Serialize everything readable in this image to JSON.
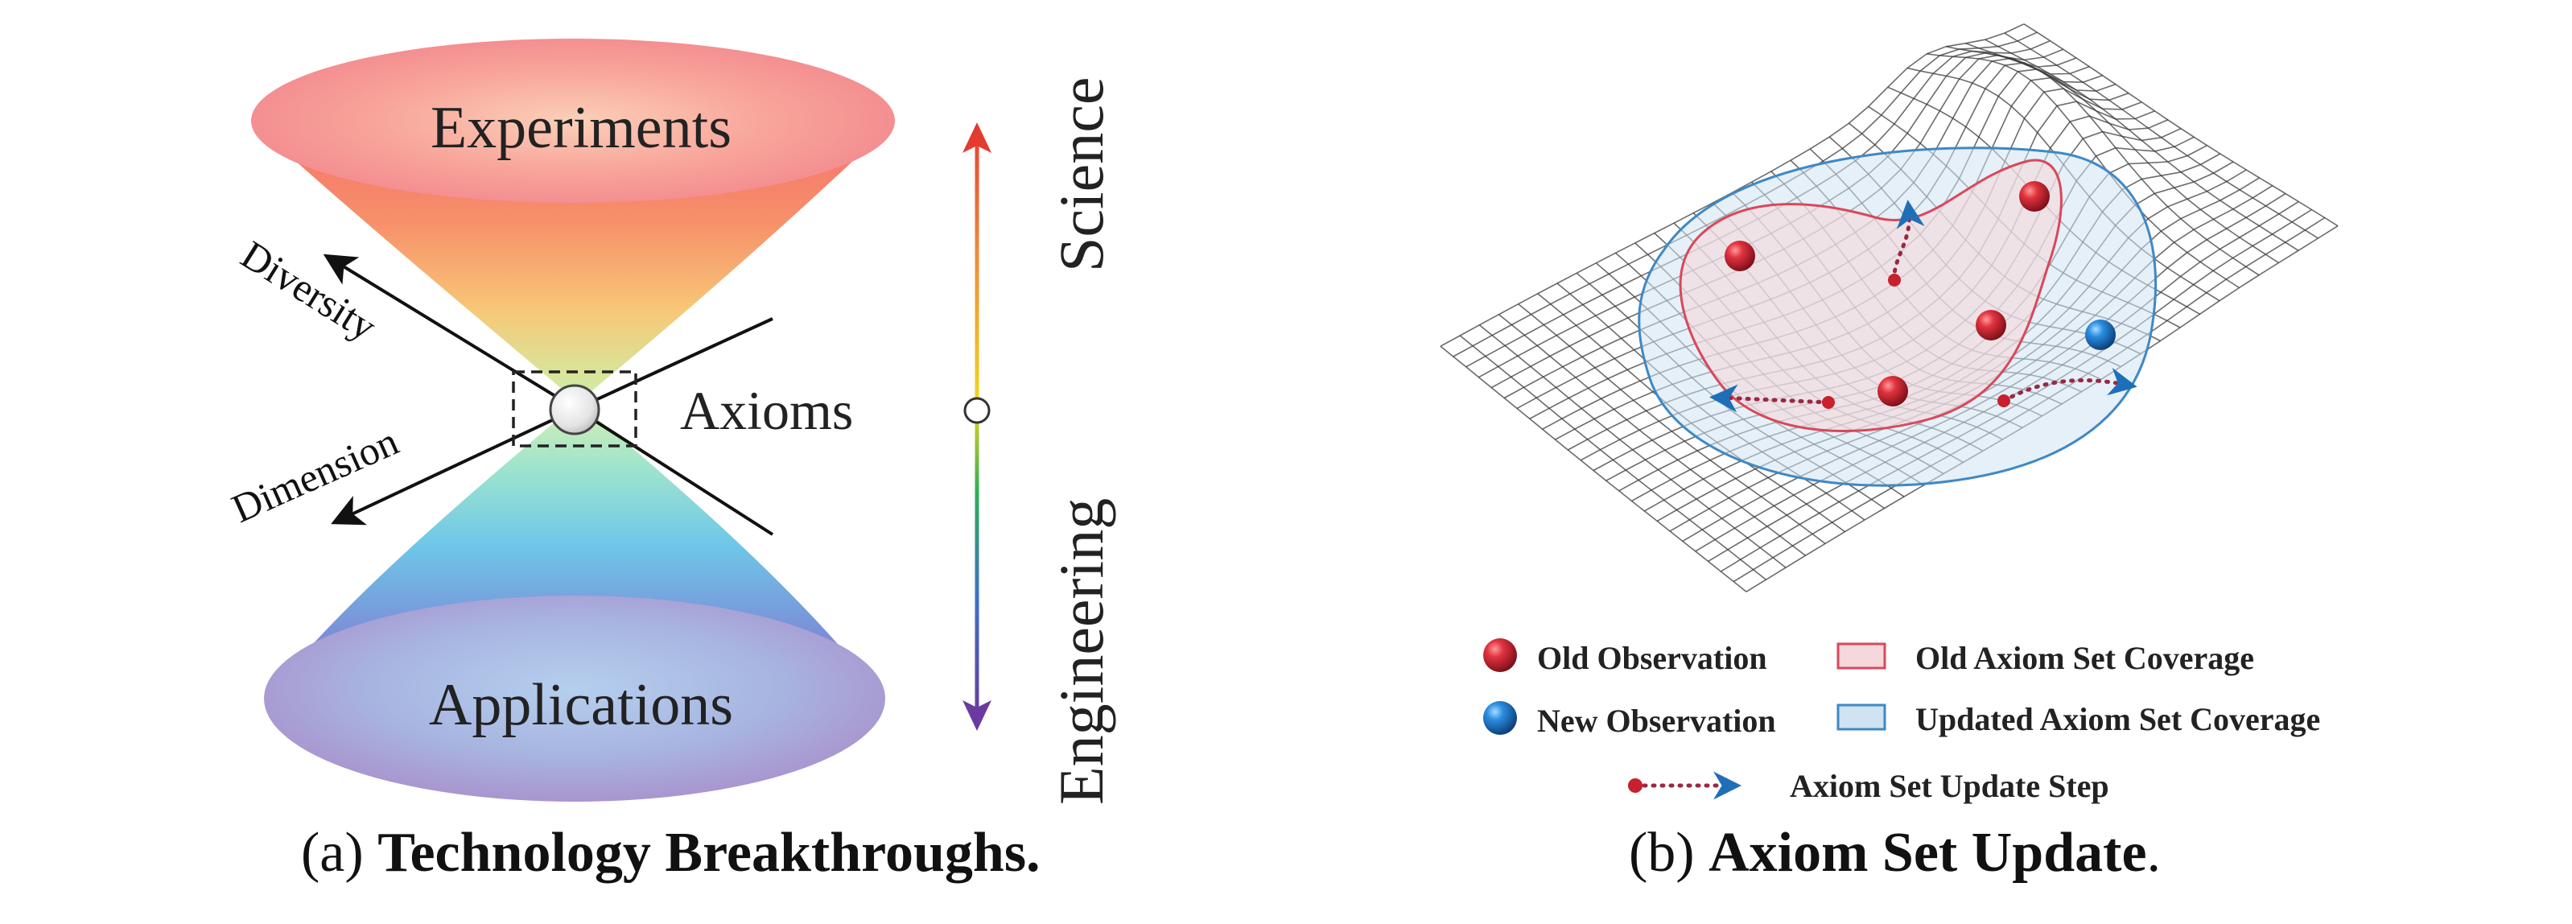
{
  "panel_a": {
    "top_label": "Experiments",
    "bottom_label": "Applications",
    "center_label": "Axioms",
    "arrow_upper_label": "Diversity",
    "arrow_lower_label": "Dimension",
    "axis_top_label": "Science",
    "axis_bottom_label": "Engineering",
    "caption_prefix": "(a) ",
    "caption_bold": "Technology Breakthroughs."
  },
  "panel_b": {
    "legend": {
      "old_observation": "Old Observation",
      "new_observation": "New Observation",
      "old_coverage": "Old Axiom Set Coverage",
      "updated_coverage": "Updated Axiom Set Coverage",
      "update_step": "Axiom Set Update Step"
    },
    "caption_prefix": "(b) ",
    "caption_bold": "Axiom Set Update",
    "caption_suffix": "."
  },
  "colors": {
    "old_observation": "#c8202c",
    "new_observation": "#1f7fd6",
    "old_coverage_stroke": "#d9485a",
    "old_coverage_fill": "#f4d8dc",
    "updated_coverage_stroke": "#3f88c5",
    "updated_coverage_fill": "#cfe3f3",
    "update_step_dots": "#9c2742",
    "update_step_arrow": "#1f6fb8",
    "axis_top": "#e53a2f",
    "axis_mid": "#f0d520",
    "axis_lower": "#2fae55",
    "axis_bottom": "#6a3aa0"
  }
}
